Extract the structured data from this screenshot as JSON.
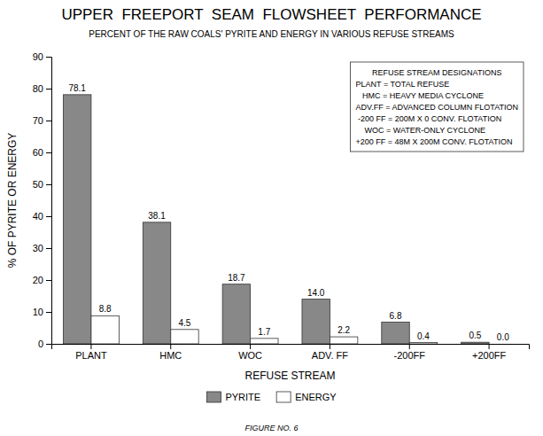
{
  "chart_data": {
    "type": "bar",
    "title": "UPPER  FREEPORT  SEAM  FLOWSHEET  PERFORMANCE",
    "subtitle": "PERCENT OF THE RAW COALS' PYRITE AND ENERGY IN VARIOUS REFUSE STREAMS",
    "xlabel": "REFUSE STREAM",
    "ylabel": "% OF PYRITE OR ENERGY",
    "categories": [
      "PLANT",
      "HMC",
      "WOC",
      "ADV. FF",
      "-200FF",
      "+200FF"
    ],
    "series": [
      {
        "name": "PYRITE",
        "color": "#888888",
        "values": [
          78.1,
          38.1,
          18.7,
          14.0,
          6.8,
          0.5
        ],
        "value_labels": [
          "78.1",
          "38.1",
          "18.7",
          "14.0",
          "6.8",
          "0.5"
        ]
      },
      {
        "name": "ENERGY",
        "color": "#ffffff",
        "values": [
          8.8,
          4.5,
          1.7,
          2.2,
          0.4,
          0.0
        ],
        "value_labels": [
          "8.8",
          "4.5",
          "1.7",
          "2.2",
          "0.4",
          "0.0"
        ]
      }
    ],
    "ylim": [
      0,
      90
    ],
    "yticks": [
      0,
      10,
      20,
      30,
      40,
      50,
      60,
      70,
      80,
      90
    ],
    "grid": false,
    "legend": "bottom",
    "data_labels": true,
    "annotation": {
      "title": "REFUSE STREAM DESIGNATIONS",
      "lines": [
        "PLANT = TOTAL REFUSE",
        "   HMC = HEAVY MEDIA CYCLONE",
        "ADV.FF = ADVANCED COLUMN FLOTATION",
        " -200 FF = 200M X 0 CONV. FLOTATION",
        "    WOC = WATER-ONLY CYCLONE",
        "+200 FF = 48M X 200M CONV. FLOTATION"
      ]
    },
    "caption": "FIGURE NO. 6"
  }
}
